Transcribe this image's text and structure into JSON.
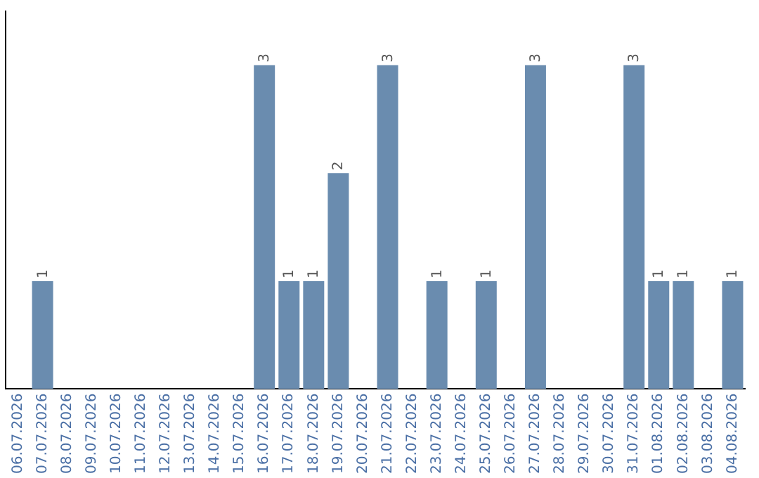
{
  "chart_data": {
    "type": "bar",
    "categories": [
      "06.07.2026",
      "07.07.2026",
      "08.07.2026",
      "09.07.2026",
      "10.07.2026",
      "11.07.2026",
      "12.07.2026",
      "13.07.2026",
      "14.07.2026",
      "15.07.2026",
      "16.07.2026",
      "17.07.2026",
      "18.07.2026",
      "19.07.2026",
      "20.07.2026",
      "21.07.2026",
      "22.07.2026",
      "23.07.2026",
      "24.07.2026",
      "25.07.2026",
      "26.07.2026",
      "27.07.2026",
      "28.07.2026",
      "29.07.2026",
      "30.07.2026",
      "31.07.2026",
      "01.08.2026",
      "02.08.2026",
      "03.08.2026",
      "04.08.2026"
    ],
    "values": [
      0,
      1,
      0,
      0,
      0,
      0,
      0,
      0,
      0,
      0,
      3,
      1,
      1,
      2,
      0,
      3,
      0,
      1,
      0,
      1,
      0,
      3,
      0,
      0,
      0,
      3,
      1,
      1,
      0,
      1
    ],
    "value_labels": [
      null,
      "1",
      null,
      null,
      null,
      null,
      null,
      null,
      null,
      null,
      "3",
      "1",
      "1",
      "2",
      null,
      "3",
      null,
      "1",
      null,
      "1",
      null,
      "3",
      null,
      null,
      null,
      "3",
      "1",
      "1",
      null,
      "1"
    ],
    "color": "#6a8caf",
    "tick_labels": "x",
    "grid": false,
    "legend": false
  }
}
